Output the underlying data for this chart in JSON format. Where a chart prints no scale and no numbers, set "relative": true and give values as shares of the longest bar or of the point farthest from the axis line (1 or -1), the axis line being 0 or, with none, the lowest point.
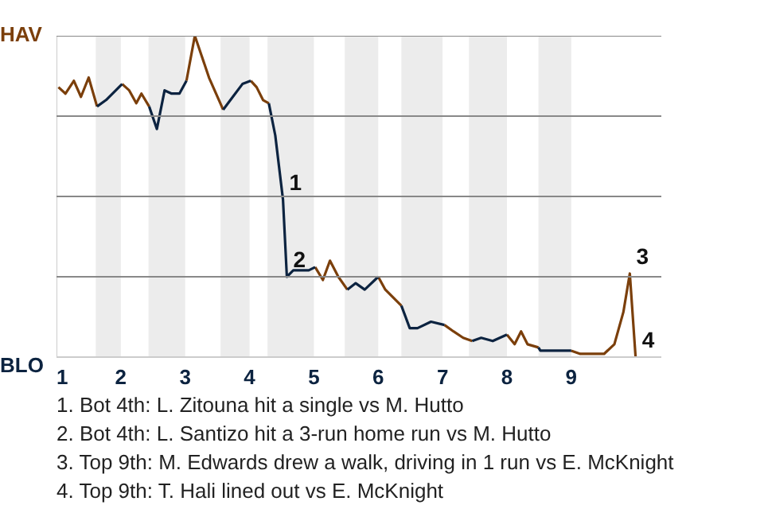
{
  "chart_data": {
    "type": "line",
    "relative": true,
    "grid": "y",
    "marker": "none",
    "line_style": "solid",
    "xlim": [
      1,
      10.4
    ],
    "xticks": [
      1,
      2,
      3,
      4,
      5,
      6,
      7,
      8,
      9
    ],
    "x": [
      1.03,
      1.14,
      1.27,
      1.38,
      1.5,
      1.63,
      1.77,
      2.02,
      2.13,
      2.24,
      2.32,
      2.44,
      2.56,
      2.68,
      2.79,
      2.91,
      3.02,
      3.15,
      3.37,
      3.59,
      3.74,
      3.89,
      4.02,
      4.11,
      4.21,
      4.3,
      4.4,
      4.52,
      4.58,
      4.68,
      4.81,
      4.92,
      5.02,
      5.14,
      5.25,
      5.38,
      5.52,
      5.65,
      5.79,
      6.0,
      6.11,
      6.36,
      6.49,
      6.61,
      6.82,
      7.03,
      7.17,
      7.32,
      7.46,
      7.6,
      7.78,
      8.0,
      8.12,
      8.22,
      8.32,
      8.49,
      8.52,
      8.79,
      8.85,
      9.0,
      9.14,
      9.51,
      9.67,
      9.81,
      9.91,
      10.0
    ],
    "bands": [
      {
        "axis": "x",
        "from": 1.61,
        "to": 2,
        "color": "#ececec"
      },
      {
        "axis": "x",
        "from": 2.43,
        "to": 3,
        "color": "#ececec"
      },
      {
        "axis": "x",
        "from": 3.55,
        "to": 4,
        "color": "#ececec"
      },
      {
        "axis": "x",
        "from": 4.28,
        "to": 5,
        "color": "#ececec"
      },
      {
        "axis": "x",
        "from": 5.48,
        "to": 6,
        "color": "#ececec"
      },
      {
        "axis": "x",
        "from": 6.36,
        "to": 7,
        "color": "#ececec"
      },
      {
        "axis": "x",
        "from": 7.41,
        "to": 8,
        "color": "#ececec"
      },
      {
        "axis": "x",
        "from": 8.49,
        "to": 9,
        "color": "#ececec"
      }
    ],
    "series": [
      {
        "color": "#7b3f0b",
        "values": [
          0.84,
          0.82,
          0.86,
          0.81,
          0.87,
          0.78,
          null,
          0.85,
          0.83,
          0.79,
          0.82,
          0.78,
          null,
          null,
          null,
          null,
          0.86,
          1,
          0.87,
          0.77,
          null,
          null,
          0.86,
          0.84,
          0.8,
          0.79,
          null,
          null,
          null,
          null,
          null,
          null,
          0.28,
          0.24,
          0.3,
          0.25,
          0.21,
          null,
          null,
          0.25,
          0.21,
          0.16,
          null,
          null,
          null,
          0.1,
          0.08,
          0.06,
          0.05,
          null,
          null,
          0.07,
          0.04,
          0.08,
          0.04,
          0.03,
          null,
          null,
          null,
          0.02,
          0.01,
          0.01,
          0.04,
          0.14,
          0.26,
          0
        ]
      },
      {
        "color": "#0c2340",
        "values": [
          null,
          null,
          null,
          null,
          null,
          0.78,
          0.8,
          0.85,
          null,
          null,
          null,
          0.78,
          0.71,
          0.83,
          0.82,
          0.82,
          0.86,
          null,
          null,
          0.77,
          0.81,
          0.85,
          0.86,
          null,
          null,
          0.79,
          0.69,
          0.49,
          0.25,
          0.27,
          0.27,
          0.27,
          0.28,
          null,
          null,
          null,
          0.21,
          0.23,
          0.21,
          0.25,
          null,
          0.16,
          0.09,
          0.09,
          0.11,
          0.1,
          null,
          null,
          0.05,
          0.06,
          0.05,
          0.07,
          null,
          null,
          null,
          0.03,
          0.02,
          0.02,
          0.02,
          0.02,
          null,
          null,
          null,
          null,
          null,
          null
        ]
      }
    ],
    "annotations": [
      "HAV",
      "BLO",
      {
        "text": "1",
        "x": 4.52,
        "y": 0.49
      },
      {
        "text": "2",
        "x": 4.58,
        "y": 0.25
      },
      {
        "text": "3",
        "x": 9.91,
        "y": 0.26
      },
      {
        "text": "4",
        "x": 10.0,
        "y": 0
      },
      "1. Bot 4th: L. Zitouna hit a single vs M. Hutto",
      "2. Bot 4th: L. Santizo hit a 3-run home run vs M. Hutto",
      "3. Top 9th: M. Edwards drew a walk, driving in 1 run vs E. McKnight",
      "4. Top 9th: T. Hali lined out vs E. McKnight"
    ]
  }
}
